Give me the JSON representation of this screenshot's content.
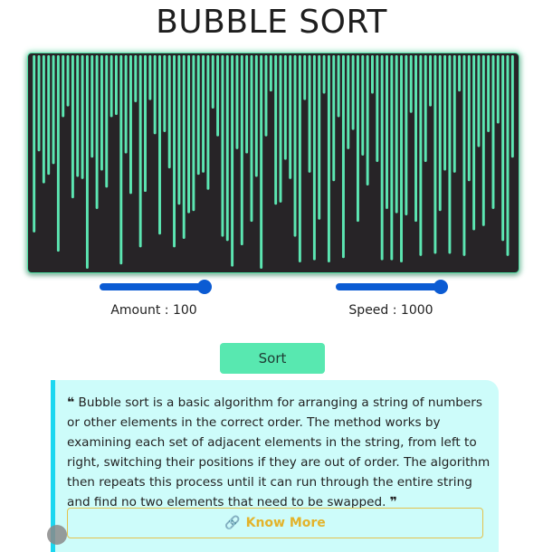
{
  "page": {
    "title": "BUBBLE SORT"
  },
  "visualizer": {
    "bar_color": "#5ce6b2",
    "background": "#272427",
    "array_values": [
      83,
      45,
      60,
      56,
      51,
      92,
      29,
      24,
      67,
      57,
      58,
      100,
      48,
      72,
      54,
      62,
      29,
      28,
      98,
      46,
      65,
      22,
      90,
      64,
      21,
      37,
      84,
      36,
      53,
      90,
      70,
      86,
      74,
      73,
      56,
      55,
      63,
      25,
      38,
      85,
      87,
      99,
      44,
      89,
      46,
      78,
      57,
      100,
      38,
      17,
      70,
      69,
      49,
      58,
      85,
      97,
      21,
      55,
      96,
      77,
      18,
      97,
      59,
      29,
      95,
      44,
      35,
      78,
      47,
      61,
      18,
      50,
      96,
      72,
      96,
      74,
      97,
      75,
      27,
      78,
      94,
      50,
      24,
      93,
      73,
      54,
      93,
      55,
      17,
      94,
      59,
      82,
      43,
      80,
      36,
      72,
      32,
      87,
      94,
      48
    ],
    "max_value": 100
  },
  "controls": {
    "amount": {
      "label": "Amount : 100",
      "value": 100,
      "fill_fraction": 1.0
    },
    "speed": {
      "label": "Speed : 1000",
      "value": 1000,
      "fill_fraction": 1.0
    },
    "sort_label": "Sort"
  },
  "info": {
    "open_quote": "❝",
    "text": "Bubble sort is a basic algorithm for arranging a string of numbers or other elements in the correct order. The method works by examining each set of adjacent elements in the string, from left to right, switching their positions if they are out of order. The algorithm then repeats this process until it can run through the entire string and find no two elements that need to be swapped.",
    "close_quote": "❞",
    "know_more_label": "Know More",
    "know_more_icon": "link-icon"
  }
}
